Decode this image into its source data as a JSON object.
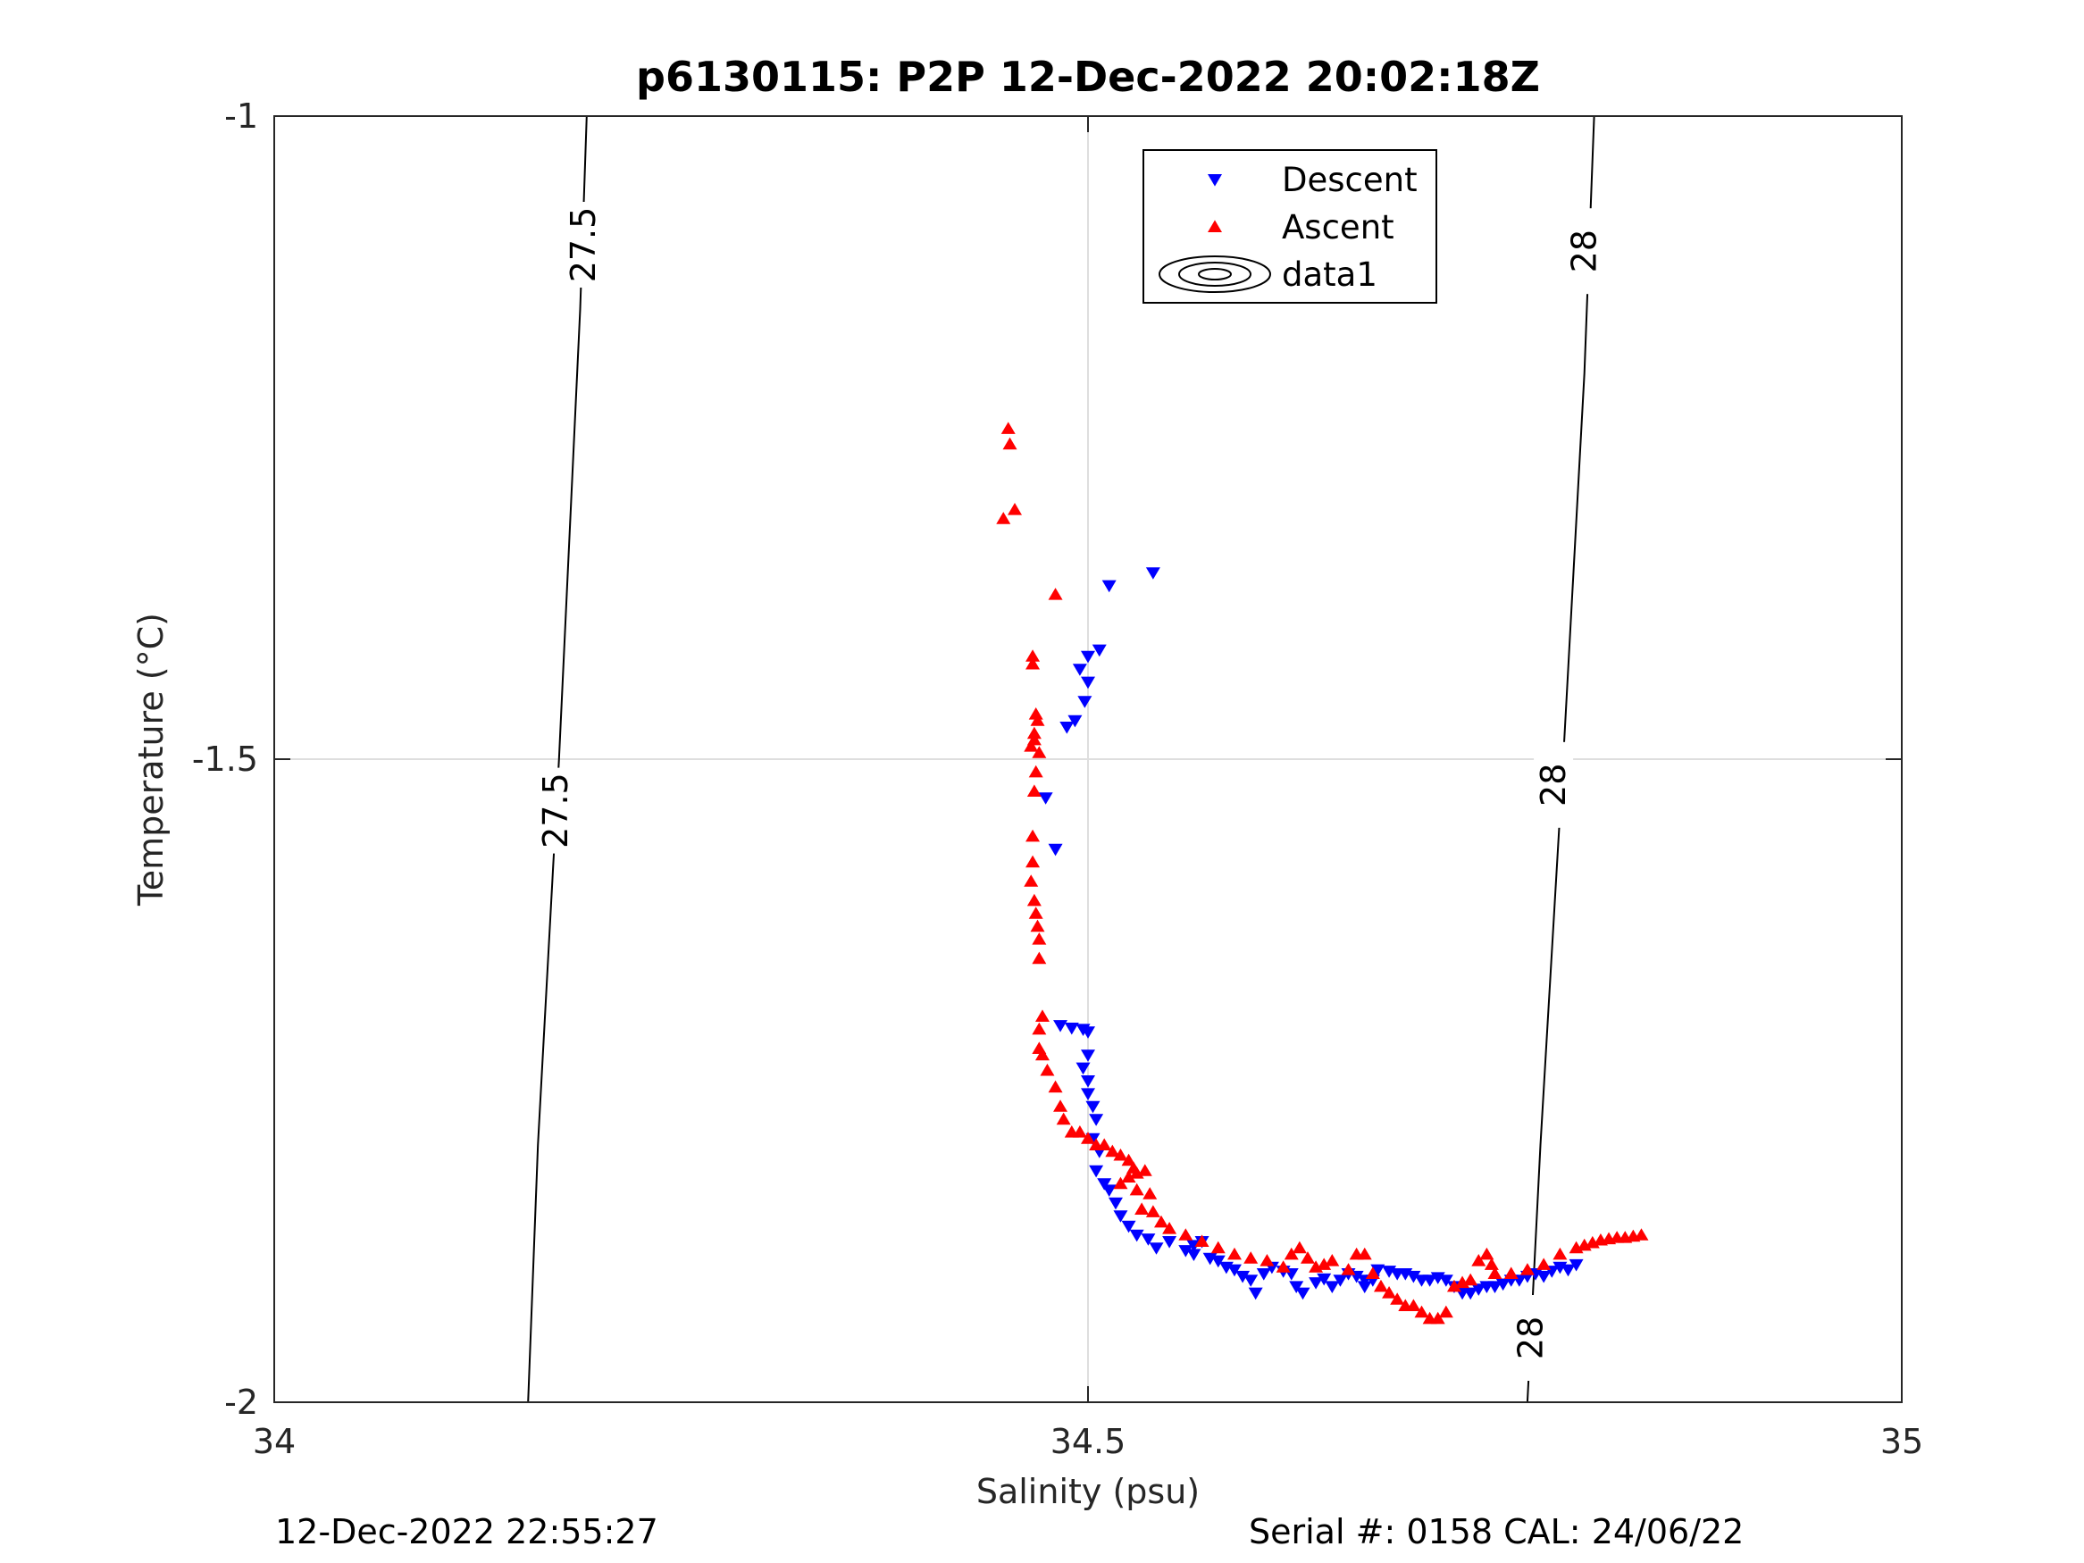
{
  "chart_data": {
    "type": "scatter",
    "title": "p6130115: P2P 12-Dec-2022 20:02:18Z",
    "xlabel": "Salinity (psu)",
    "ylabel": "Temperature (°C)",
    "xlim": [
      34,
      35
    ],
    "ylim": [
      -2,
      -1
    ],
    "xticks": [
      "34",
      "34.5",
      "35"
    ],
    "yticks": [
      "-2",
      "-1.5",
      "-1"
    ],
    "grid": true,
    "legend_position": "top-center",
    "legend": [
      {
        "label": "Descent",
        "marker": "triangle-down",
        "color": "#0000ff"
      },
      {
        "label": "Ascent",
        "marker": "triangle-up",
        "color": "#ff0000"
      },
      {
        "label": "data1",
        "marker": "contour",
        "color": "#000000"
      }
    ],
    "contours": [
      {
        "level": "27.5",
        "points": [
          [
            34.192,
            -1.0
          ],
          [
            34.188,
            -1.15
          ],
          [
            34.175,
            -1.5
          ],
          [
            34.162,
            -1.8
          ],
          [
            34.156,
            -2.0
          ]
        ],
        "labels": [
          {
            "text": "27.5",
            "x": 34.19,
            "y": -1.1
          },
          {
            "text": "27.5",
            "x": 34.173,
            "y": -1.54
          }
        ]
      },
      {
        "level": "28",
        "points": [
          [
            34.811,
            -1.0
          ],
          [
            34.805,
            -1.2
          ],
          [
            34.792,
            -1.5
          ],
          [
            34.778,
            -1.8
          ],
          [
            34.77,
            -2.0
          ]
        ],
        "labels": [
          {
            "text": "28",
            "x": 34.805,
            "y": -1.105
          },
          {
            "text": "28",
            "x": 34.786,
            "y": -1.52
          },
          {
            "text": "28",
            "x": 34.772,
            "y": -1.95
          }
        ]
      }
    ],
    "series": [
      {
        "name": "Descent",
        "marker": "triangle-down",
        "color": "#0000ff",
        "points": [
          [
            34.54,
            -1.355
          ],
          [
            34.513,
            -1.365
          ],
          [
            34.507,
            -1.415
          ],
          [
            34.5,
            -1.42
          ],
          [
            34.495,
            -1.43
          ],
          [
            34.5,
            -1.44
          ],
          [
            34.498,
            -1.455
          ],
          [
            34.492,
            -1.47
          ],
          [
            34.487,
            -1.475
          ],
          [
            34.474,
            -1.53
          ],
          [
            34.48,
            -1.57
          ],
          [
            34.483,
            -1.707
          ],
          [
            34.49,
            -1.709
          ],
          [
            34.497,
            -1.71
          ],
          [
            34.5,
            -1.712
          ],
          [
            34.5,
            -1.73
          ],
          [
            34.497,
            -1.74
          ],
          [
            34.5,
            -1.75
          ],
          [
            34.5,
            -1.76
          ],
          [
            34.503,
            -1.77
          ],
          [
            34.505,
            -1.78
          ],
          [
            34.503,
            -1.795
          ],
          [
            34.507,
            -1.805
          ],
          [
            34.505,
            -1.82
          ],
          [
            34.51,
            -1.83
          ],
          [
            34.513,
            -1.835
          ],
          [
            34.517,
            -1.845
          ],
          [
            34.52,
            -1.855
          ],
          [
            34.525,
            -1.863
          ],
          [
            34.53,
            -1.87
          ],
          [
            34.537,
            -1.873
          ],
          [
            34.542,
            -1.88
          ],
          [
            34.55,
            -1.875
          ],
          [
            34.56,
            -1.882
          ],
          [
            34.565,
            -1.878
          ],
          [
            34.57,
            -1.875
          ],
          [
            34.565,
            -1.885
          ],
          [
            34.575,
            -1.888
          ],
          [
            34.58,
            -1.89
          ],
          [
            34.585,
            -1.895
          ],
          [
            34.59,
            -1.897
          ],
          [
            34.595,
            -1.902
          ],
          [
            34.6,
            -1.905
          ],
          [
            34.603,
            -1.915
          ],
          [
            34.608,
            -1.9
          ],
          [
            34.613,
            -1.895
          ],
          [
            34.62,
            -1.898
          ],
          [
            34.625,
            -1.9
          ],
          [
            34.628,
            -1.91
          ],
          [
            34.632,
            -1.915
          ],
          [
            34.64,
            -1.907
          ],
          [
            34.645,
            -1.904
          ],
          [
            34.65,
            -1.91
          ],
          [
            34.655,
            -1.905
          ],
          [
            34.66,
            -1.9
          ],
          [
            34.665,
            -1.902
          ],
          [
            34.67,
            -1.905
          ],
          [
            34.67,
            -1.91
          ],
          [
            34.675,
            -1.905
          ],
          [
            34.678,
            -1.897
          ],
          [
            34.685,
            -1.898
          ],
          [
            34.69,
            -1.9
          ],
          [
            34.695,
            -1.9
          ],
          [
            34.7,
            -1.902
          ],
          [
            34.705,
            -1.905
          ],
          [
            34.71,
            -1.905
          ],
          [
            34.715,
            -1.903
          ],
          [
            34.72,
            -1.905
          ],
          [
            34.725,
            -1.91
          ],
          [
            34.73,
            -1.915
          ],
          [
            34.735,
            -1.915
          ],
          [
            34.74,
            -1.912
          ],
          [
            34.745,
            -1.91
          ],
          [
            34.75,
            -1.91
          ],
          [
            34.755,
            -1.908
          ],
          [
            34.76,
            -1.905
          ],
          [
            34.765,
            -1.905
          ],
          [
            34.77,
            -1.902
          ],
          [
            34.775,
            -1.9
          ],
          [
            34.78,
            -1.902
          ],
          [
            34.785,
            -1.898
          ],
          [
            34.79,
            -1.895
          ],
          [
            34.795,
            -1.897
          ],
          [
            34.8,
            -1.893
          ]
        ]
      },
      {
        "name": "Ascent",
        "marker": "triangle-up",
        "color": "#ff0000",
        "points": [
          [
            34.451,
            -1.243
          ],
          [
            34.452,
            -1.255
          ],
          [
            34.455,
            -1.306
          ],
          [
            34.448,
            -1.313
          ],
          [
            34.48,
            -1.372
          ],
          [
            34.466,
            -1.42
          ],
          [
            34.466,
            -1.426
          ],
          [
            34.468,
            -1.465
          ],
          [
            34.469,
            -1.47
          ],
          [
            34.467,
            -1.48
          ],
          [
            34.467,
            -1.485
          ],
          [
            34.465,
            -1.49
          ],
          [
            34.47,
            -1.495
          ],
          [
            34.468,
            -1.51
          ],
          [
            34.467,
            -1.525
          ],
          [
            34.466,
            -1.56
          ],
          [
            34.466,
            -1.58
          ],
          [
            34.465,
            -1.595
          ],
          [
            34.467,
            -1.61
          ],
          [
            34.468,
            -1.62
          ],
          [
            34.469,
            -1.63
          ],
          [
            34.47,
            -1.64
          ],
          [
            34.47,
            -1.655
          ],
          [
            34.472,
            -1.7
          ],
          [
            34.47,
            -1.71
          ],
          [
            34.47,
            -1.725
          ],
          [
            34.472,
            -1.73
          ],
          [
            34.475,
            -1.742
          ],
          [
            34.48,
            -1.755
          ],
          [
            34.483,
            -1.77
          ],
          [
            34.485,
            -1.78
          ],
          [
            34.49,
            -1.79
          ],
          [
            34.495,
            -1.79
          ],
          [
            34.5,
            -1.795
          ],
          [
            34.505,
            -1.8
          ],
          [
            34.51,
            -1.8
          ],
          [
            34.515,
            -1.805
          ],
          [
            34.52,
            -1.808
          ],
          [
            34.525,
            -1.812
          ],
          [
            34.528,
            -1.818
          ],
          [
            34.52,
            -1.83
          ],
          [
            34.525,
            -1.825
          ],
          [
            34.53,
            -1.822
          ],
          [
            34.535,
            -1.82
          ],
          [
            34.53,
            -1.835
          ],
          [
            34.538,
            -1.838
          ],
          [
            34.533,
            -1.85
          ],
          [
            34.54,
            -1.852
          ],
          [
            34.545,
            -1.86
          ],
          [
            34.55,
            -1.865
          ],
          [
            34.56,
            -1.87
          ],
          [
            34.57,
            -1.875
          ],
          [
            34.58,
            -1.88
          ],
          [
            34.59,
            -1.885
          ],
          [
            34.6,
            -1.888
          ],
          [
            34.61,
            -1.89
          ],
          [
            34.62,
            -1.895
          ],
          [
            34.625,
            -1.885
          ],
          [
            34.63,
            -1.88
          ],
          [
            34.635,
            -1.888
          ],
          [
            34.64,
            -1.895
          ],
          [
            34.645,
            -1.893
          ],
          [
            34.65,
            -1.89
          ],
          [
            34.66,
            -1.897
          ],
          [
            34.665,
            -1.885
          ],
          [
            34.67,
            -1.885
          ],
          [
            34.675,
            -1.9
          ],
          [
            34.68,
            -1.91
          ],
          [
            34.685,
            -1.915
          ],
          [
            34.69,
            -1.92
          ],
          [
            34.695,
            -1.925
          ],
          [
            34.7,
            -1.925
          ],
          [
            34.705,
            -1.93
          ],
          [
            34.71,
            -1.935
          ],
          [
            34.715,
            -1.935
          ],
          [
            34.72,
            -1.93
          ],
          [
            34.725,
            -1.91
          ],
          [
            34.73,
            -1.907
          ],
          [
            34.735,
            -1.905
          ],
          [
            34.74,
            -1.89
          ],
          [
            34.745,
            -1.885
          ],
          [
            34.748,
            -1.893
          ],
          [
            34.75,
            -1.9
          ],
          [
            34.76,
            -1.9
          ],
          [
            34.77,
            -1.897
          ],
          [
            34.78,
            -1.893
          ],
          [
            34.79,
            -1.885
          ],
          [
            34.8,
            -1.88
          ],
          [
            34.805,
            -1.878
          ],
          [
            34.81,
            -1.876
          ],
          [
            34.815,
            -1.874
          ],
          [
            34.82,
            -1.873
          ],
          [
            34.825,
            -1.872
          ],
          [
            34.83,
            -1.872
          ],
          [
            34.835,
            -1.871
          ],
          [
            34.84,
            -1.87
          ]
        ]
      }
    ]
  },
  "footer": {
    "timestamp": "12-Dec-2022 22:55:27",
    "serial": "Serial #: 0158  CAL: 24/06/22"
  }
}
